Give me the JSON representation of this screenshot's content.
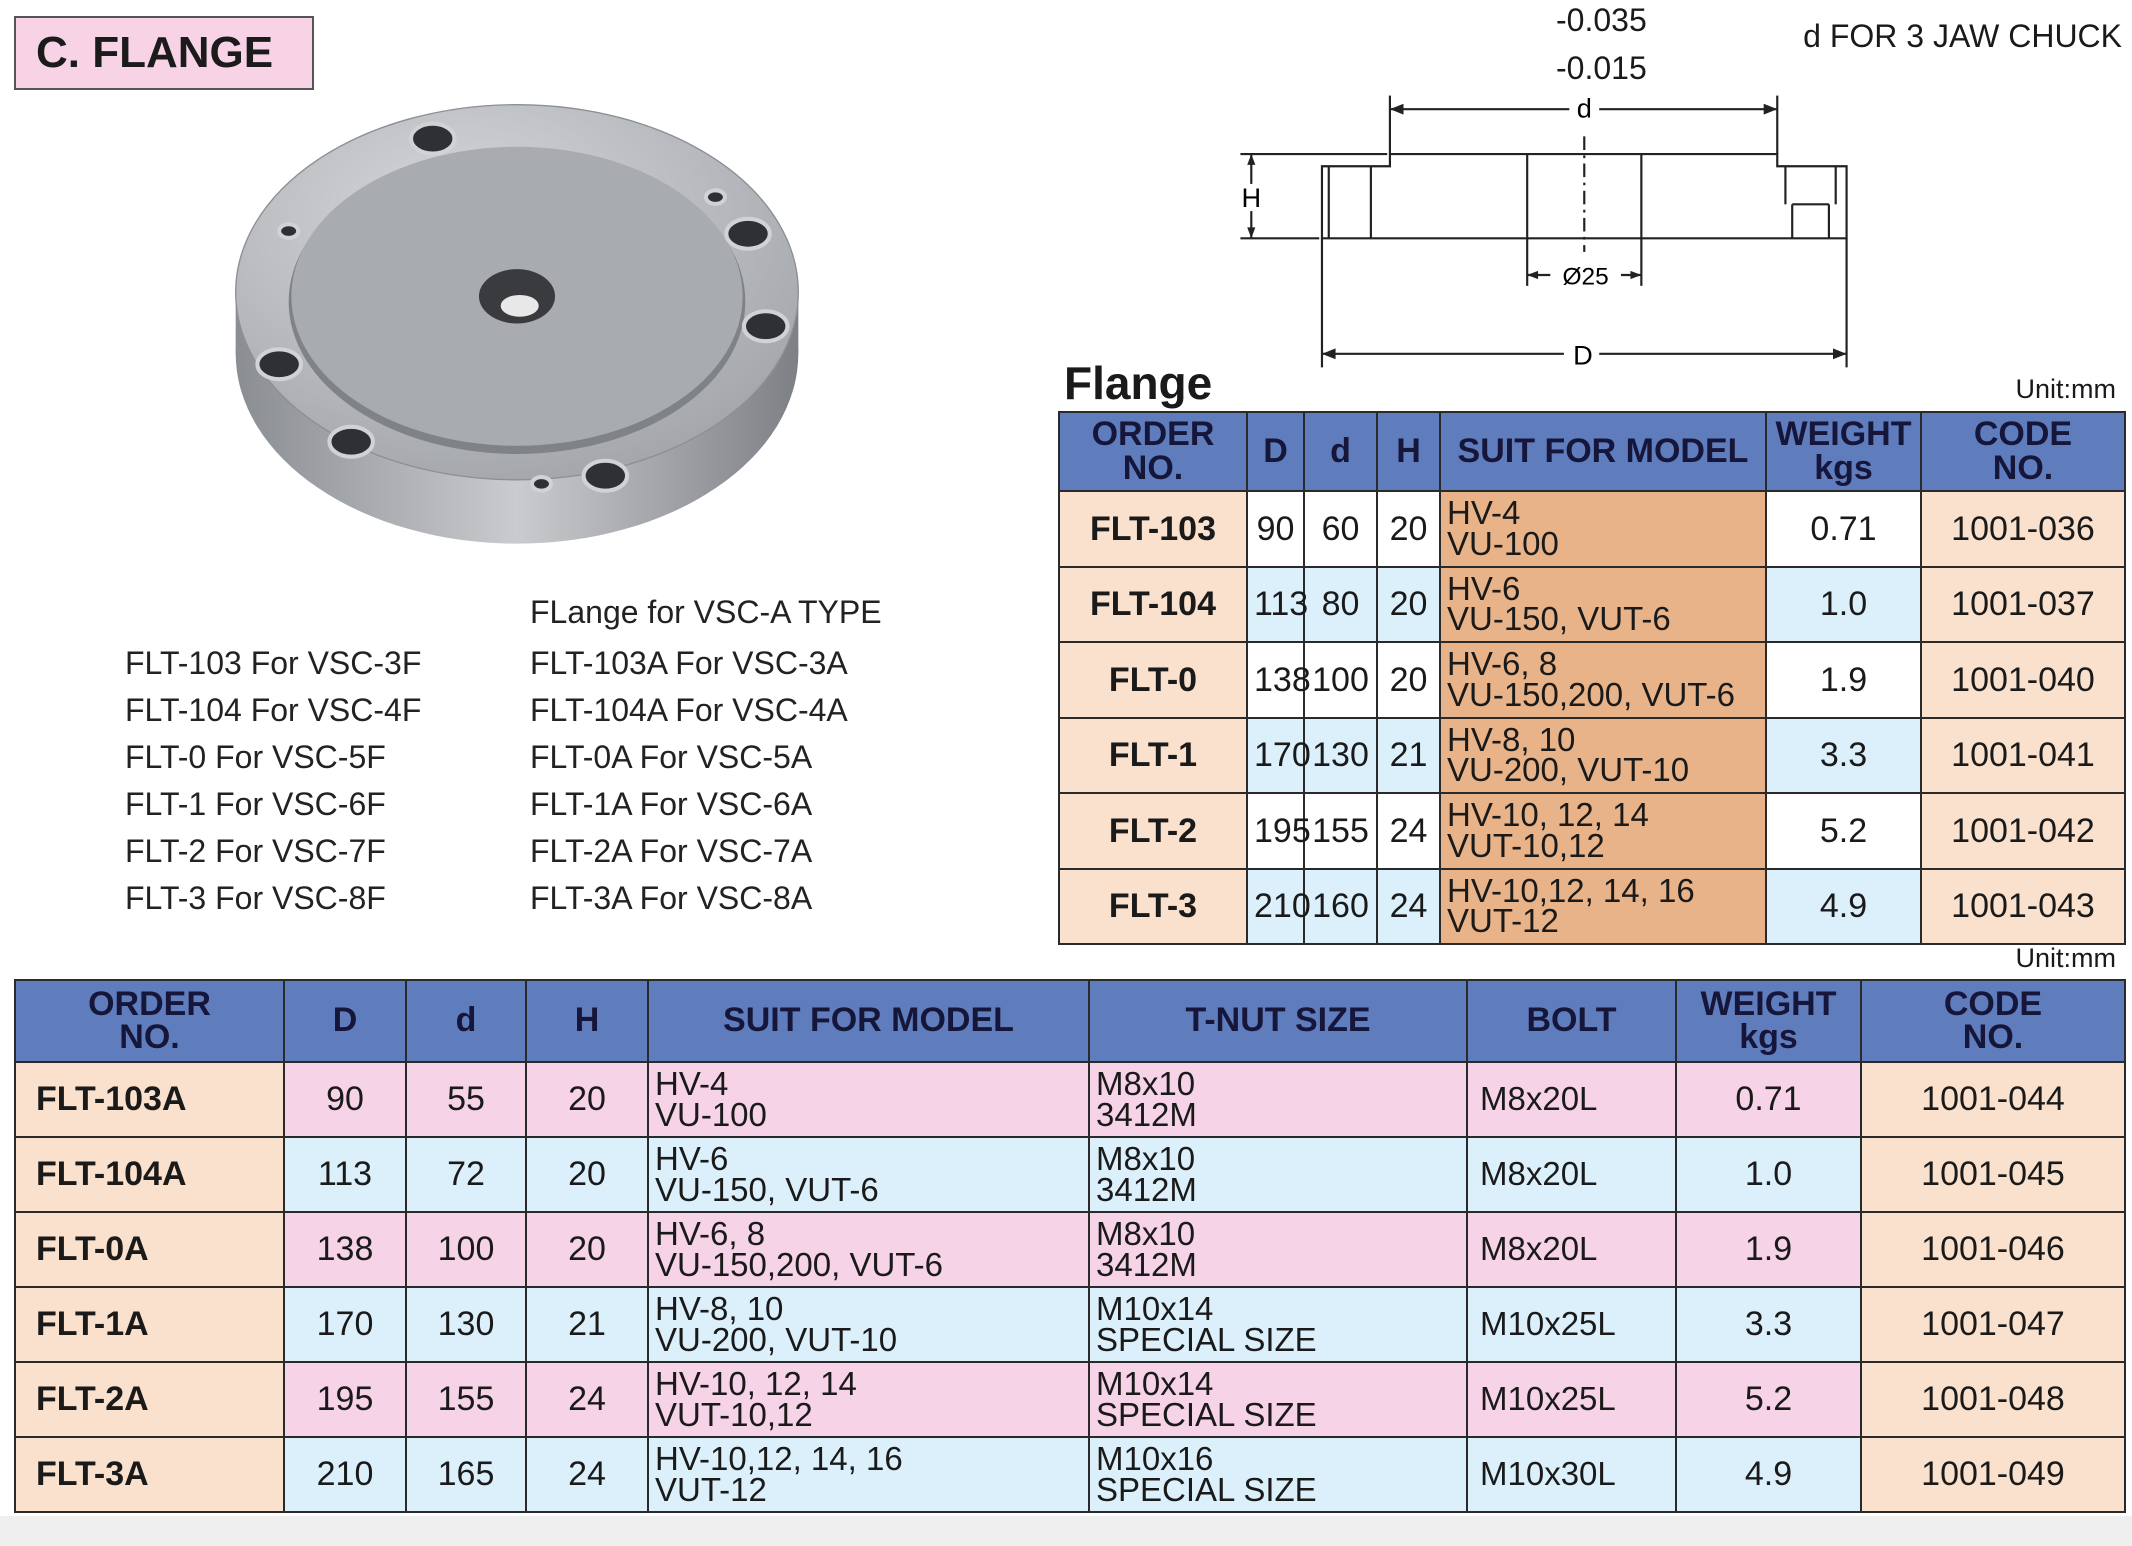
{
  "header": {
    "title": "C. FLANGE"
  },
  "drawing": {
    "tol_upper": "-0.035",
    "tol_lower": "-0.015",
    "note": "d FOR 3 JAW CHUCK",
    "label_d": "d",
    "label_H": "H",
    "label_bore": "Ø25",
    "label_D": "D"
  },
  "model_list": {
    "heading": "FLange for VSC-A TYPE",
    "left": [
      "FLT-103 For VSC-3F",
      "FLT-104 For VSC-4F",
      "FLT-0 For VSC-5F",
      "FLT-1 For VSC-6F",
      "FLT-2 For VSC-7F",
      "FLT-3 For VSC-8F"
    ],
    "right": [
      "FLT-103A For VSC-3A",
      "FLT-104A For VSC-4A",
      "FLT-0A For VSC-5A",
      "FLT-1A For VSC-6A",
      "FLT-2A For VSC-7A",
      "FLT-3A For VSC-8A"
    ]
  },
  "table1": {
    "title": "Flange",
    "unit": "Unit:mm",
    "headers": [
      "ORDER\nNO.",
      "D",
      "d",
      "H",
      "SUIT FOR MODEL",
      "WEIGHT\nkgs",
      "CODE\nNO."
    ],
    "rows": [
      [
        "FLT-103",
        "90",
        "60",
        "20",
        "HV-4\nVU-100",
        "0.71",
        "1001-036"
      ],
      [
        "FLT-104",
        "113",
        "80",
        "20",
        "HV-6\nVU-150, VUT-6",
        "1.0",
        "1001-037"
      ],
      [
        "FLT-0",
        "138",
        "100",
        "20",
        "HV-6, 8\nVU-150,200, VUT-6",
        "1.9",
        "1001-040"
      ],
      [
        "FLT-1",
        "170",
        "130",
        "21",
        "HV-8, 10\nVU-200, VUT-10",
        "3.3",
        "1001-041"
      ],
      [
        "FLT-2",
        "195",
        "155",
        "24",
        "HV-10, 12, 14\nVUT-10,12",
        "5.2",
        "1001-042"
      ],
      [
        "FLT-3",
        "210",
        "160",
        "24",
        "HV-10,12, 14, 16\nVUT-12",
        "4.9",
        "1001-043"
      ]
    ]
  },
  "table2": {
    "unit": "Unit:mm",
    "headers": [
      "ORDER\nNO.",
      "D",
      "d",
      "H",
      "SUIT FOR MODEL",
      "T-NUT SIZE",
      "BOLT",
      "WEIGHT\nkgs",
      "CODE\nNO."
    ],
    "rows": [
      [
        "FLT-103A",
        "90",
        "55",
        "20",
        "HV-4\nVU-100",
        "M8x10\n3412M",
        "M8x20L",
        "0.71",
        "1001-044"
      ],
      [
        "FLT-104A",
        "113",
        "72",
        "20",
        "HV-6\nVU-150, VUT-6",
        "M8x10\n3412M",
        "M8x20L",
        "1.0",
        "1001-045"
      ],
      [
        "FLT-0A",
        "138",
        "100",
        "20",
        "HV-6, 8\nVU-150,200, VUT-6",
        "M8x10\n3412M",
        "M8x20L",
        "1.9",
        "1001-046"
      ],
      [
        "FLT-1A",
        "170",
        "130",
        "21",
        "HV-8, 10\nVU-200, VUT-10",
        "M10x14\nSPECIAL SIZE",
        "M10x25L",
        "3.3",
        "1001-047"
      ],
      [
        "FLT-2A",
        "195",
        "155",
        "24",
        "HV-10, 12, 14\nVUT-10,12",
        "M10x14\nSPECIAL SIZE",
        "M10x25L",
        "5.2",
        "1001-048"
      ],
      [
        "FLT-3A",
        "210",
        "165",
        "24",
        "HV-10,12, 14, 16\nVUT-12",
        "M10x16\nSPECIAL SIZE",
        "M10x30L",
        "4.9",
        "1001-049"
      ]
    ]
  }
}
